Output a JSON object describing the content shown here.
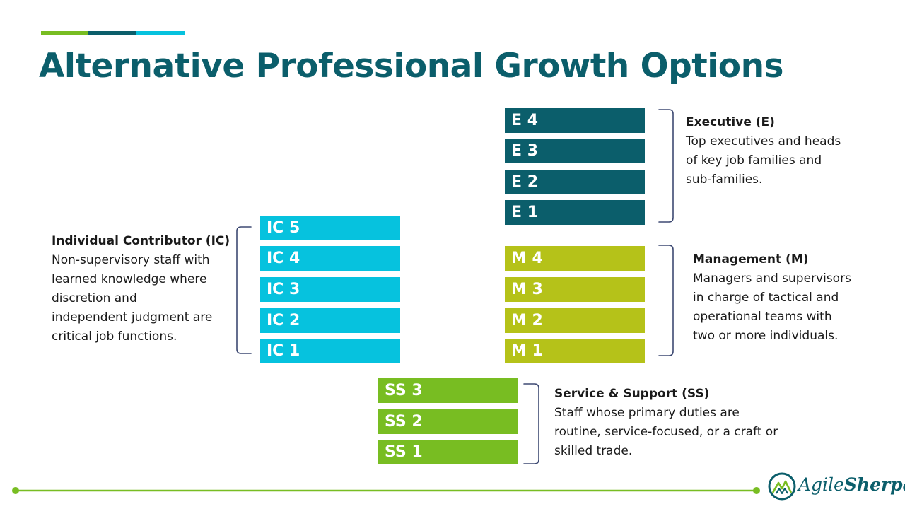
{
  "title": "Alternative Professional Growth Options",
  "colors": {
    "executive": "#0b5e6b",
    "management": "#b5c219",
    "individual_contributor": "#06c2de",
    "service_support": "#78bd22",
    "accent_line": "#78bd22"
  },
  "executive": {
    "levels": [
      "E 4",
      "E 3",
      "E 2",
      "E 1"
    ],
    "heading": "Executive (E)",
    "description_lines": [
      "Top executives and heads",
      "of key job families and",
      "sub-families."
    ]
  },
  "management": {
    "levels": [
      "M 4",
      "M 3",
      "M 2",
      "M 1"
    ],
    "heading": "Management (M)",
    "description_lines": [
      "Managers and supervisors",
      "in charge of tactical and",
      "operational teams with",
      "two or more individuals."
    ]
  },
  "individual_contributor": {
    "levels": [
      "IC 5",
      "IC 4",
      "IC 3",
      "IC 2",
      "IC 1"
    ],
    "heading": "Individual Contributor (IC)",
    "description_lines": [
      "Non-supervisory staff with",
      "learned knowledge where",
      "discretion and",
      "independent judgment are",
      "critical job functions."
    ]
  },
  "service_support": {
    "levels": [
      "SS 3",
      "SS 2",
      "SS 1"
    ],
    "heading": "Service & Support (SS)",
    "description_lines": [
      "Staff whose primary duties are",
      "routine, service-focused, or a craft or",
      "skilled trade."
    ]
  },
  "logo": {
    "part1": "Agile",
    "part2": "Sherpas",
    "icon": "mountain-logo-icon"
  }
}
